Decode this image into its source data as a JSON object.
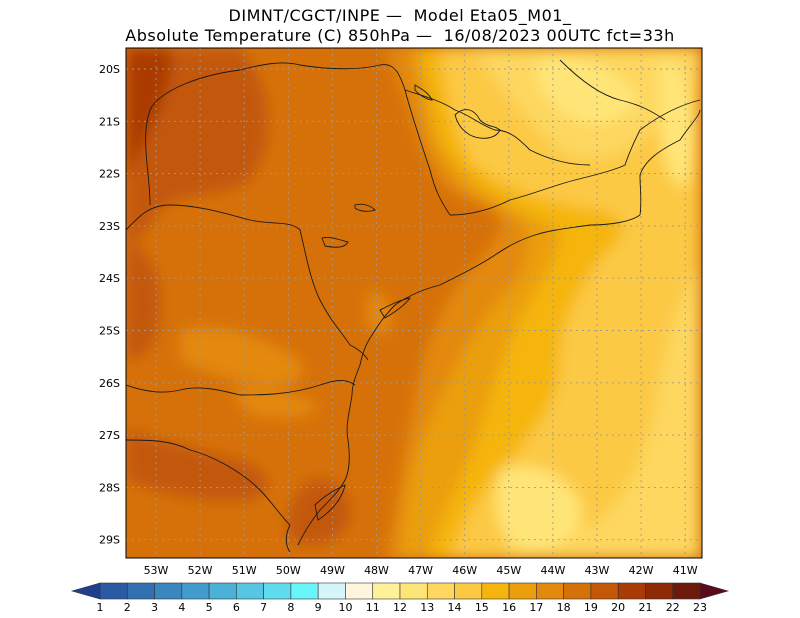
{
  "title_line1": "DIMNT/CGCT/INPE —  Model Eta05_M01_",
  "title_line2": "Absolute Temperature (C) 850hPa —  16/08/2023 00UTC fct=33h",
  "lon_labels": [
    "53W",
    "52W",
    "51W",
    "50W",
    "49W",
    "48W",
    "47W",
    "46W",
    "45W",
    "44W",
    "43W",
    "42W",
    "41W"
  ],
  "lat_labels": [
    "20S",
    "21S",
    "22S",
    "23S",
    "24S",
    "25S",
    "26S",
    "27S",
    "28S",
    "29S"
  ],
  "colorbar": {
    "labels": [
      "1",
      "2",
      "3",
      "4",
      "5",
      "6",
      "7",
      "8",
      "9",
      "10",
      "11",
      "12",
      "13",
      "14",
      "15",
      "16",
      "17",
      "18",
      "19",
      "20",
      "21",
      "22",
      "23"
    ],
    "colors": [
      "#1f3f8f",
      "#2a5aa3",
      "#3170b0",
      "#3a86bf",
      "#419ccc",
      "#4bb1d8",
      "#56c6e4",
      "#5fdcee",
      "#6af5fb",
      "#d4f6fb",
      "#fff5dd",
      "#fff09a",
      "#ffe577",
      "#fdd75f",
      "#fcc944",
      "#f5b50e",
      "#eb9f0c",
      "#e3890d",
      "#d6710a",
      "#c35808",
      "#ab3b06",
      "#8e2a05",
      "#6c1b0b",
      "#5a0b1a"
    ]
  },
  "colors": {
    "t20": "#c35808",
    "t19": "#d6710a",
    "t18": "#e3890d",
    "t17": "#eb9f0c",
    "t16": "#f5b50e",
    "t15": "#fcc944",
    "t14": "#fdd75f",
    "t13": "#ffe577",
    "t12": "#fff09a",
    "t21": "#ab3b06",
    "t22": "#8e2a05"
  }
}
